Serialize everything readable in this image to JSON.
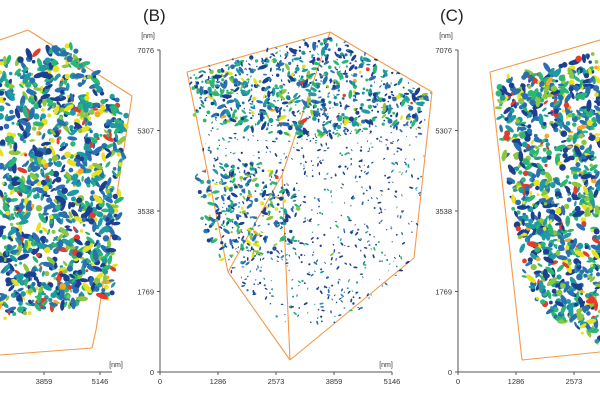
{
  "figure": {
    "panels": [
      {
        "label": "",
        "unit_x": "[nm]",
        "x_ticks": [
          "3859",
          "5146"
        ],
        "density": "dense"
      },
      {
        "label": "(B)",
        "unit_y": "[nm]",
        "unit_x": "[nm]",
        "y_ticks": [
          "7076",
          "5307",
          "3538",
          "1769",
          "0"
        ],
        "x_ticks": [
          "0",
          "1286",
          "2573",
          "3859",
          "5146"
        ],
        "density": "sparse"
      },
      {
        "label": "(C)",
        "unit_y": "[nm]",
        "y_ticks": [
          "7076",
          "5307",
          "3538",
          "1769",
          "0"
        ],
        "x_ticks": [
          "0",
          "1286",
          "2573"
        ],
        "density": "dense"
      }
    ],
    "colors": {
      "box_edge": "#f39a4c",
      "axis": "#555555",
      "particles": [
        "#1c3f8f",
        "#2a6fb0",
        "#1f9aa3",
        "#2bb673",
        "#8cc63f",
        "#e8e21e",
        "#f5a623",
        "#e53b2c"
      ]
    }
  }
}
